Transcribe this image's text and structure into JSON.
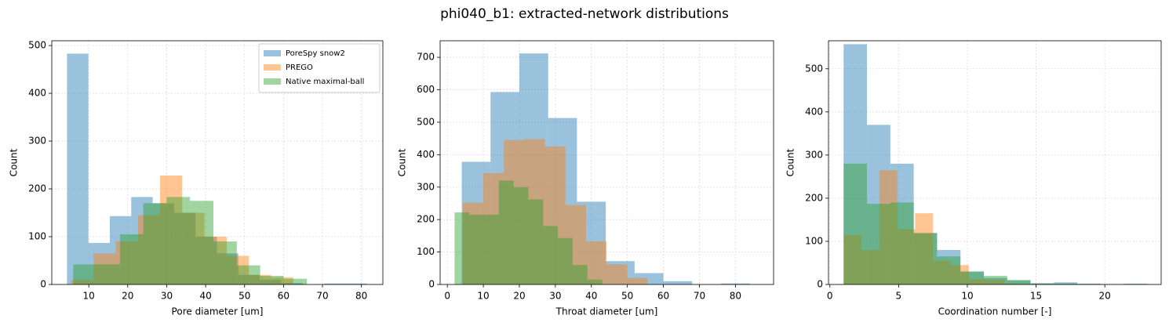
{
  "title": "phi040_b1: extracted-network distributions",
  "chart_data": [
    {
      "type": "histogram",
      "xlabel": "Pore diameter [um]",
      "ylabel": "Count",
      "xlim": [
        0.5,
        85.5
      ],
      "ylim": [
        0,
        510
      ],
      "xticks": [
        10,
        20,
        30,
        40,
        50,
        60,
        70,
        80
      ],
      "yticks": [
        0,
        100,
        200,
        300,
        400,
        500
      ],
      "grid": true,
      "legend": "upper right",
      "series": [
        {
          "name": "PoreSpy snow2",
          "color": "#1f77b4",
          "bins": [
            4.4,
            9.9,
            15.4,
            20.9,
            26.4,
            31.9,
            37.4,
            42.9,
            48.4,
            53.9,
            59.4,
            64.9,
            70.4,
            75.9,
            81.4
          ],
          "values": [
            483,
            87,
            143,
            183,
            170,
            150,
            100,
            65,
            20,
            10,
            3,
            0,
            2,
            2
          ]
        },
        {
          "name": "PREGO",
          "color": "#ff7f0e",
          "bins": [
            5.5,
            11.2,
            16.9,
            22.6,
            28.3,
            34.0,
            39.7,
            45.4,
            51.1,
            56.8,
            62.5
          ],
          "values": [
            10,
            65,
            90,
            145,
            228,
            150,
            100,
            60,
            20,
            15
          ]
        },
        {
          "name": "Native maximal-ball",
          "color": "#2ca02c",
          "bins": [
            6,
            12,
            18,
            24,
            30,
            36,
            42,
            48,
            54,
            60,
            66
          ],
          "values": [
            42,
            42,
            105,
            170,
            183,
            175,
            90,
            40,
            18,
            12
          ]
        }
      ]
    },
    {
      "type": "histogram",
      "xlabel": "Throat diameter [um]",
      "ylabel": "Count",
      "xlim": [
        -2,
        90.6
      ],
      "ylim": [
        0,
        751
      ],
      "xticks": [
        0,
        10,
        20,
        30,
        40,
        50,
        60,
        70,
        80
      ],
      "yticks": [
        0,
        100,
        200,
        300,
        400,
        500,
        600,
        700
      ],
      "grid": true,
      "series": [
        {
          "name": "PoreSpy snow2",
          "color": "#1f77b4",
          "bins": [
            4,
            12,
            20,
            28,
            36,
            44,
            52,
            60,
            68,
            76,
            84
          ],
          "values": [
            378,
            593,
            712,
            513,
            255,
            72,
            35,
            10,
            0,
            3
          ]
        },
        {
          "name": "PREGO",
          "color": "#ff7f0e",
          "bins": [
            4.3,
            10.0,
            15.7,
            21.4,
            27.1,
            32.8,
            38.5,
            44.2,
            49.9,
            55.6
          ],
          "values": [
            252,
            343,
            445,
            448,
            425,
            245,
            133,
            62,
            20
          ]
        },
        {
          "name": "Native maximal-ball",
          "color": "#2ca02c",
          "bins": [
            2,
            6.1,
            10.2,
            14.3,
            18.4,
            22.5,
            26.6,
            30.7,
            34.8,
            38.9,
            43
          ],
          "values": [
            222,
            215,
            215,
            320,
            300,
            262,
            180,
            143,
            60,
            15
          ]
        }
      ]
    },
    {
      "type": "histogram",
      "xlabel": "Coordination number [-]",
      "ylabel": "Count",
      "xlim": [
        -0.1,
        24.1
      ],
      "ylim": [
        0,
        565
      ],
      "xticks": [
        0,
        5,
        10,
        15,
        20
      ],
      "yticks": [
        0,
        100,
        200,
        300,
        400,
        500
      ],
      "grid": true,
      "series": [
        {
          "name": "PoreSpy snow2",
          "color": "#1f77b4",
          "bins": [
            1,
            2.7,
            4.4,
            6.1,
            7.8,
            9.5,
            11.2,
            12.9,
            14.6,
            16.3,
            18,
            19.7,
            21.4,
            23.1
          ],
          "values": [
            557,
            370,
            280,
            120,
            80,
            30,
            15,
            10,
            3,
            5,
            1,
            0,
            0
          ]
        },
        {
          "name": "PREGO",
          "color": "#ff7f0e",
          "bins": [
            1,
            2.3,
            3.6,
            4.9,
            6.2,
            7.5,
            8.8,
            10.1,
            11.4,
            12.7,
            14.0
          ],
          "values": [
            115,
            80,
            265,
            128,
            165,
            55,
            45,
            12,
            10,
            2
          ]
        },
        {
          "name": "Native maximal-ball",
          "color": "#2ca02c",
          "bins": [
            1,
            2.7,
            4.4,
            6.1,
            7.8,
            9.5,
            11.2,
            12.9,
            14.6,
            16.3,
            18,
            19.7,
            21.4,
            23.1
          ],
          "values": [
            280,
            187,
            190,
            118,
            65,
            30,
            20,
            10,
            2,
            2,
            2,
            1,
            2
          ]
        }
      ]
    }
  ]
}
